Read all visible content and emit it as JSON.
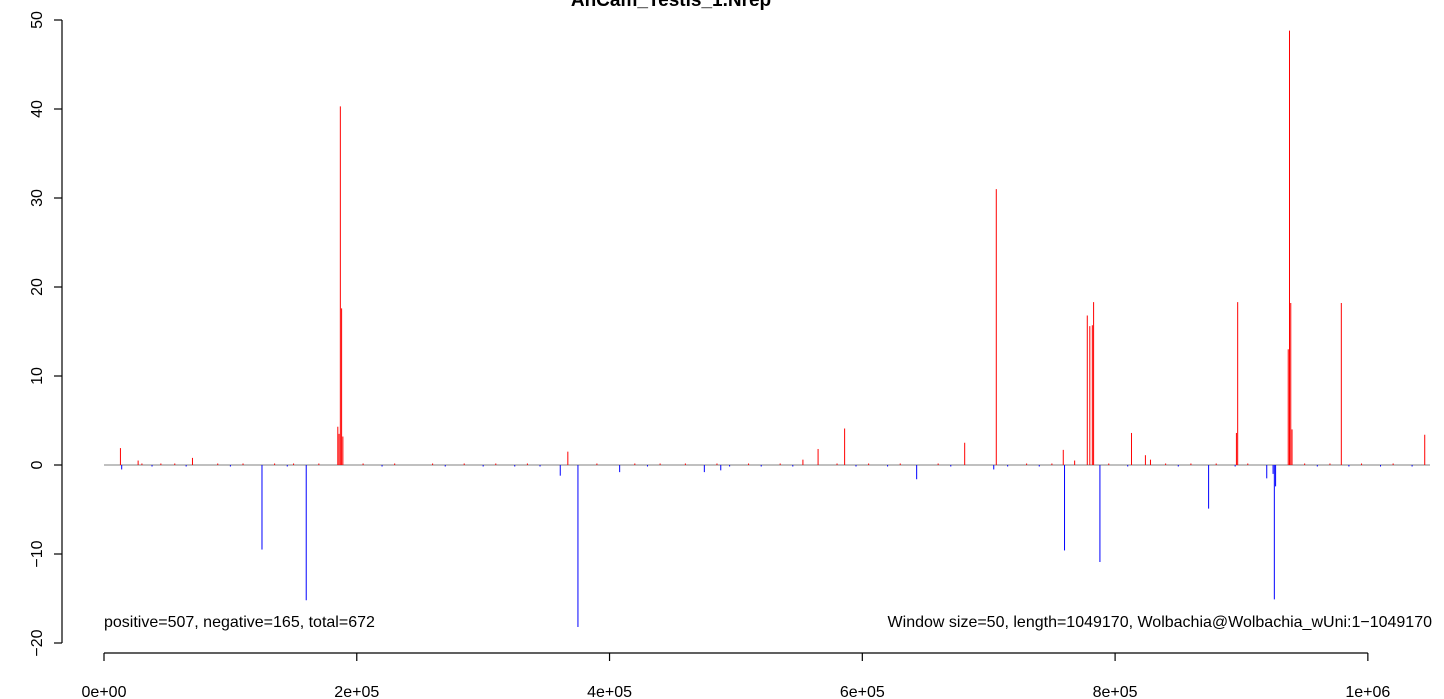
{
  "chart_data": {
    "type": "bar",
    "title": "AnCam_Testis_1.Nrep",
    "xlabel": "",
    "ylabel": "",
    "xlim": [
      0,
      1049170
    ],
    "ylim": [
      -20,
      50
    ],
    "x_ticks": [
      0,
      200000,
      400000,
      600000,
      800000,
      1000000
    ],
    "x_tick_labels": [
      "0e+00",
      "2e+05",
      "4e+05",
      "6e+05",
      "8e+05",
      "1e+06"
    ],
    "y_ticks": [
      -20,
      -10,
      0,
      10,
      20,
      30,
      40,
      50
    ],
    "y_tick_labels": [
      "−20",
      "−10",
      "0",
      "10",
      "20",
      "30",
      "40",
      "50"
    ],
    "grid": false,
    "colors": {
      "positive": "#ff0000",
      "negative": "#0000ff",
      "zero_line": "#808080"
    },
    "annotations": {
      "counts": "positive=507, negative=165, total=672",
      "info": "Window size=50, length=1049170, Wolbachia@Wolbachia_wUni:1−1049170"
    },
    "series": [
      {
        "name": "positive",
        "x": [
          13000,
          27000,
          70000,
          185000,
          186000,
          187000,
          188000,
          189000,
          367000,
          553000,
          565000,
          586000,
          681000,
          706000,
          759000,
          768000,
          778000,
          780000,
          782000,
          783000,
          813000,
          824000,
          828000,
          896000,
          897000,
          937000,
          938000,
          939000,
          940000,
          979000,
          1045000
        ],
        "values": [
          1.9,
          0.5,
          0.8,
          4.3,
          3.5,
          40.3,
          17.6,
          3.2,
          1.5,
          0.6,
          1.8,
          4.1,
          2.5,
          31.0,
          1.7,
          0.5,
          16.8,
          15.6,
          15.7,
          18.3,
          3.6,
          1.1,
          0.6,
          3.6,
          18.3,
          13.0,
          48.8,
          18.2,
          4.0,
          18.2,
          3.4
        ]
      },
      {
        "name": "negative",
        "x": [
          14000,
          125000,
          160000,
          361000,
          375000,
          408000,
          475000,
          488000,
          643000,
          704000,
          760000,
          788000,
          874000,
          920000,
          925000,
          926000,
          927000
        ],
        "values": [
          -0.5,
          -9.5,
          -15.2,
          -1.2,
          -18.2,
          -0.8,
          -0.8,
          -0.6,
          -1.6,
          -0.5,
          -9.6,
          -10.9,
          -4.9,
          -1.5,
          -1.0,
          -15.1,
          -2.4
        ]
      }
    ],
    "noise_positive": [
      30000.0,
      45000.0,
      56000.0,
      90000.0,
      110000.0,
      135000.0,
      150000.0,
      170000.0,
      205000.0,
      230000.0,
      260000.0,
      285000.0,
      310000.0,
      335000.0,
      390000.0,
      420000.0,
      440000.0,
      460000.0,
      485000.0,
      510000.0,
      535000.0,
      580000.0,
      605000.0,
      630000.0,
      660000.0,
      730000.0,
      750000.0,
      795000.0,
      840000.0,
      860000.0,
      880000.0,
      905000.0,
      950000.0,
      970000.0,
      995000.0,
      1020000.0
    ],
    "noise_negative": [
      38000.0,
      65000.0,
      100000.0,
      145000.0,
      220000.0,
      270000.0,
      300000.0,
      325000.0,
      345000.0,
      430000.0,
      495000.0,
      520000.0,
      545000.0,
      595000.0,
      620000.0,
      670000.0,
      715000.0,
      740000.0,
      810000.0,
      850000.0,
      895000.0,
      960000.0,
      985000.0,
      1010000.0,
      1035000.0
    ]
  }
}
